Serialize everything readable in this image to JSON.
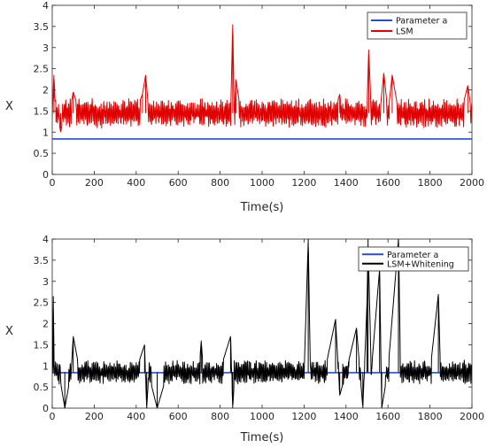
{
  "chart_data": [
    {
      "type": "line",
      "xlabel": "Time(s)",
      "ylabel": "X",
      "xlim": [
        0,
        2000
      ],
      "ylim": [
        0,
        4
      ],
      "xticks": [
        0,
        200,
        400,
        600,
        800,
        1000,
        1200,
        1400,
        1600,
        1800,
        2000
      ],
      "yticks": [
        0,
        0.5,
        1,
        1.5,
        2,
        2.5,
        3,
        3.5,
        4
      ],
      "ytick_labels": [
        "0",
        "0.5",
        "1",
        "1.5",
        "2",
        "2.5",
        "3",
        "3.5",
        "4"
      ],
      "grid": false,
      "legend_position": "top-right",
      "series": [
        {
          "name": "Parameter a",
          "color": "#1f4fd6",
          "constant": 0.84
        },
        {
          "name": "LSM",
          "color": "#e00000",
          "x": [
            0,
            8,
            15,
            25,
            40,
            60,
            80,
            100,
            130,
            170,
            200,
            250,
            300,
            350,
            400,
            430,
            445,
            460,
            500,
            550,
            600,
            650,
            700,
            750,
            800,
            830,
            850,
            860,
            868,
            875,
            900,
            950,
            1000,
            1050,
            1100,
            1150,
            1200,
            1250,
            1300,
            1350,
            1370,
            1380,
            1400,
            1450,
            1500,
            1508,
            1520,
            1560,
            1580,
            1600,
            1620,
            1650,
            1700,
            1750,
            1800,
            1850,
            1900,
            1950,
            1980,
            2000
          ],
          "y": [
            1.4,
            2.35,
            1.6,
            1.45,
            1.0,
            1.5,
            1.4,
            1.95,
            1.5,
            1.3,
            1.5,
            1.4,
            1.6,
            1.3,
            1.5,
            1.9,
            2.35,
            1.5,
            1.4,
            1.6,
            1.35,
            1.5,
            1.4,
            1.55,
            1.35,
            1.55,
            1.4,
            3.55,
            1.3,
            2.25,
            1.45,
            1.6,
            1.4,
            1.5,
            1.35,
            1.6,
            1.4,
            1.5,
            1.35,
            1.55,
            1.9,
            1.4,
            1.5,
            1.35,
            1.6,
            2.95,
            1.5,
            1.4,
            2.4,
            1.45,
            2.35,
            1.5,
            1.4,
            1.55,
            1.35,
            1.6,
            1.45,
            1.5,
            2.1,
            1.45
          ]
        }
      ]
    },
    {
      "type": "line",
      "xlabel": "Time(s)",
      "ylabel": "X",
      "xlim": [
        0,
        2000
      ],
      "ylim": [
        0,
        4
      ],
      "xticks": [
        0,
        200,
        400,
        600,
        800,
        1000,
        1200,
        1400,
        1600,
        1800,
        2000
      ],
      "yticks": [
        0,
        0.5,
        1,
        1.5,
        2,
        2.5,
        3,
        3.5,
        4
      ],
      "ytick_labels": [
        "0",
        "0.5",
        "1",
        "1.5",
        "2",
        "2.5",
        "3",
        "3.5",
        "4"
      ],
      "grid": false,
      "legend_position": "top-right",
      "series": [
        {
          "name": "Parameter a",
          "color": "#1f4fd6",
          "constant": 0.84
        },
        {
          "name": "LSM+Whitening",
          "color": "#000000",
          "x": [
            0,
            5,
            10,
            30,
            60,
            90,
            100,
            130,
            200,
            300,
            400,
            440,
            450,
            460,
            500,
            550,
            600,
            700,
            710,
            720,
            800,
            850,
            860,
            870,
            900,
            1000,
            1100,
            1200,
            1220,
            1230,
            1300,
            1350,
            1370,
            1400,
            1450,
            1480,
            1500,
            1505,
            1520,
            1560,
            1570,
            1600,
            1650,
            1660,
            1700,
            1800,
            1840,
            1850,
            1900,
            1950,
            2000
          ],
          "y": [
            0.8,
            2.65,
            0.6,
            0.9,
            0.0,
            0.85,
            1.7,
            0.9,
            0.8,
            0.85,
            0.9,
            1.5,
            0.0,
            0.8,
            0.0,
            0.85,
            0.8,
            0.9,
            1.6,
            0.85,
            0.9,
            1.7,
            0.0,
            0.85,
            0.8,
            0.9,
            0.85,
            0.8,
            4.0,
            0.85,
            0.9,
            2.1,
            0.3,
            0.85,
            1.9,
            0.0,
            2.5,
            4.0,
            0.85,
            3.3,
            0.0,
            0.9,
            4.0,
            0.8,
            0.9,
            0.85,
            2.7,
            0.9,
            0.8,
            0.85,
            0.8
          ]
        }
      ]
    }
  ]
}
